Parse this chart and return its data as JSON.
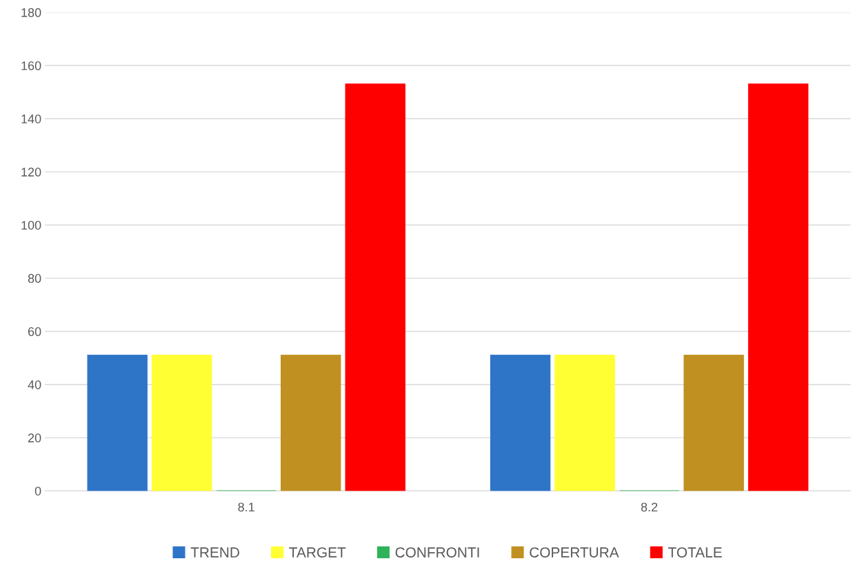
{
  "chart_data": {
    "type": "bar",
    "categories": [
      "8.1",
      "8.2"
    ],
    "series": [
      {
        "name": "TREND",
        "color": "#2e75c8",
        "values": [
          51,
          51
        ]
      },
      {
        "name": "TARGET",
        "color": "#ffff33",
        "values": [
          51,
          51
        ]
      },
      {
        "name": "CONFRONTI",
        "color": "#2eb35a",
        "values": [
          0,
          0
        ]
      },
      {
        "name": "COPERTURA",
        "color": "#c09020",
        "values": [
          51,
          51
        ]
      },
      {
        "name": "TOTALE",
        "color": "#ff0000",
        "values": [
          153,
          153
        ]
      }
    ],
    "ylim": [
      0,
      180
    ],
    "yticks": [
      0,
      20,
      40,
      60,
      80,
      100,
      120,
      140,
      160,
      180
    ],
    "grid": "y",
    "legend": "bottom"
  }
}
